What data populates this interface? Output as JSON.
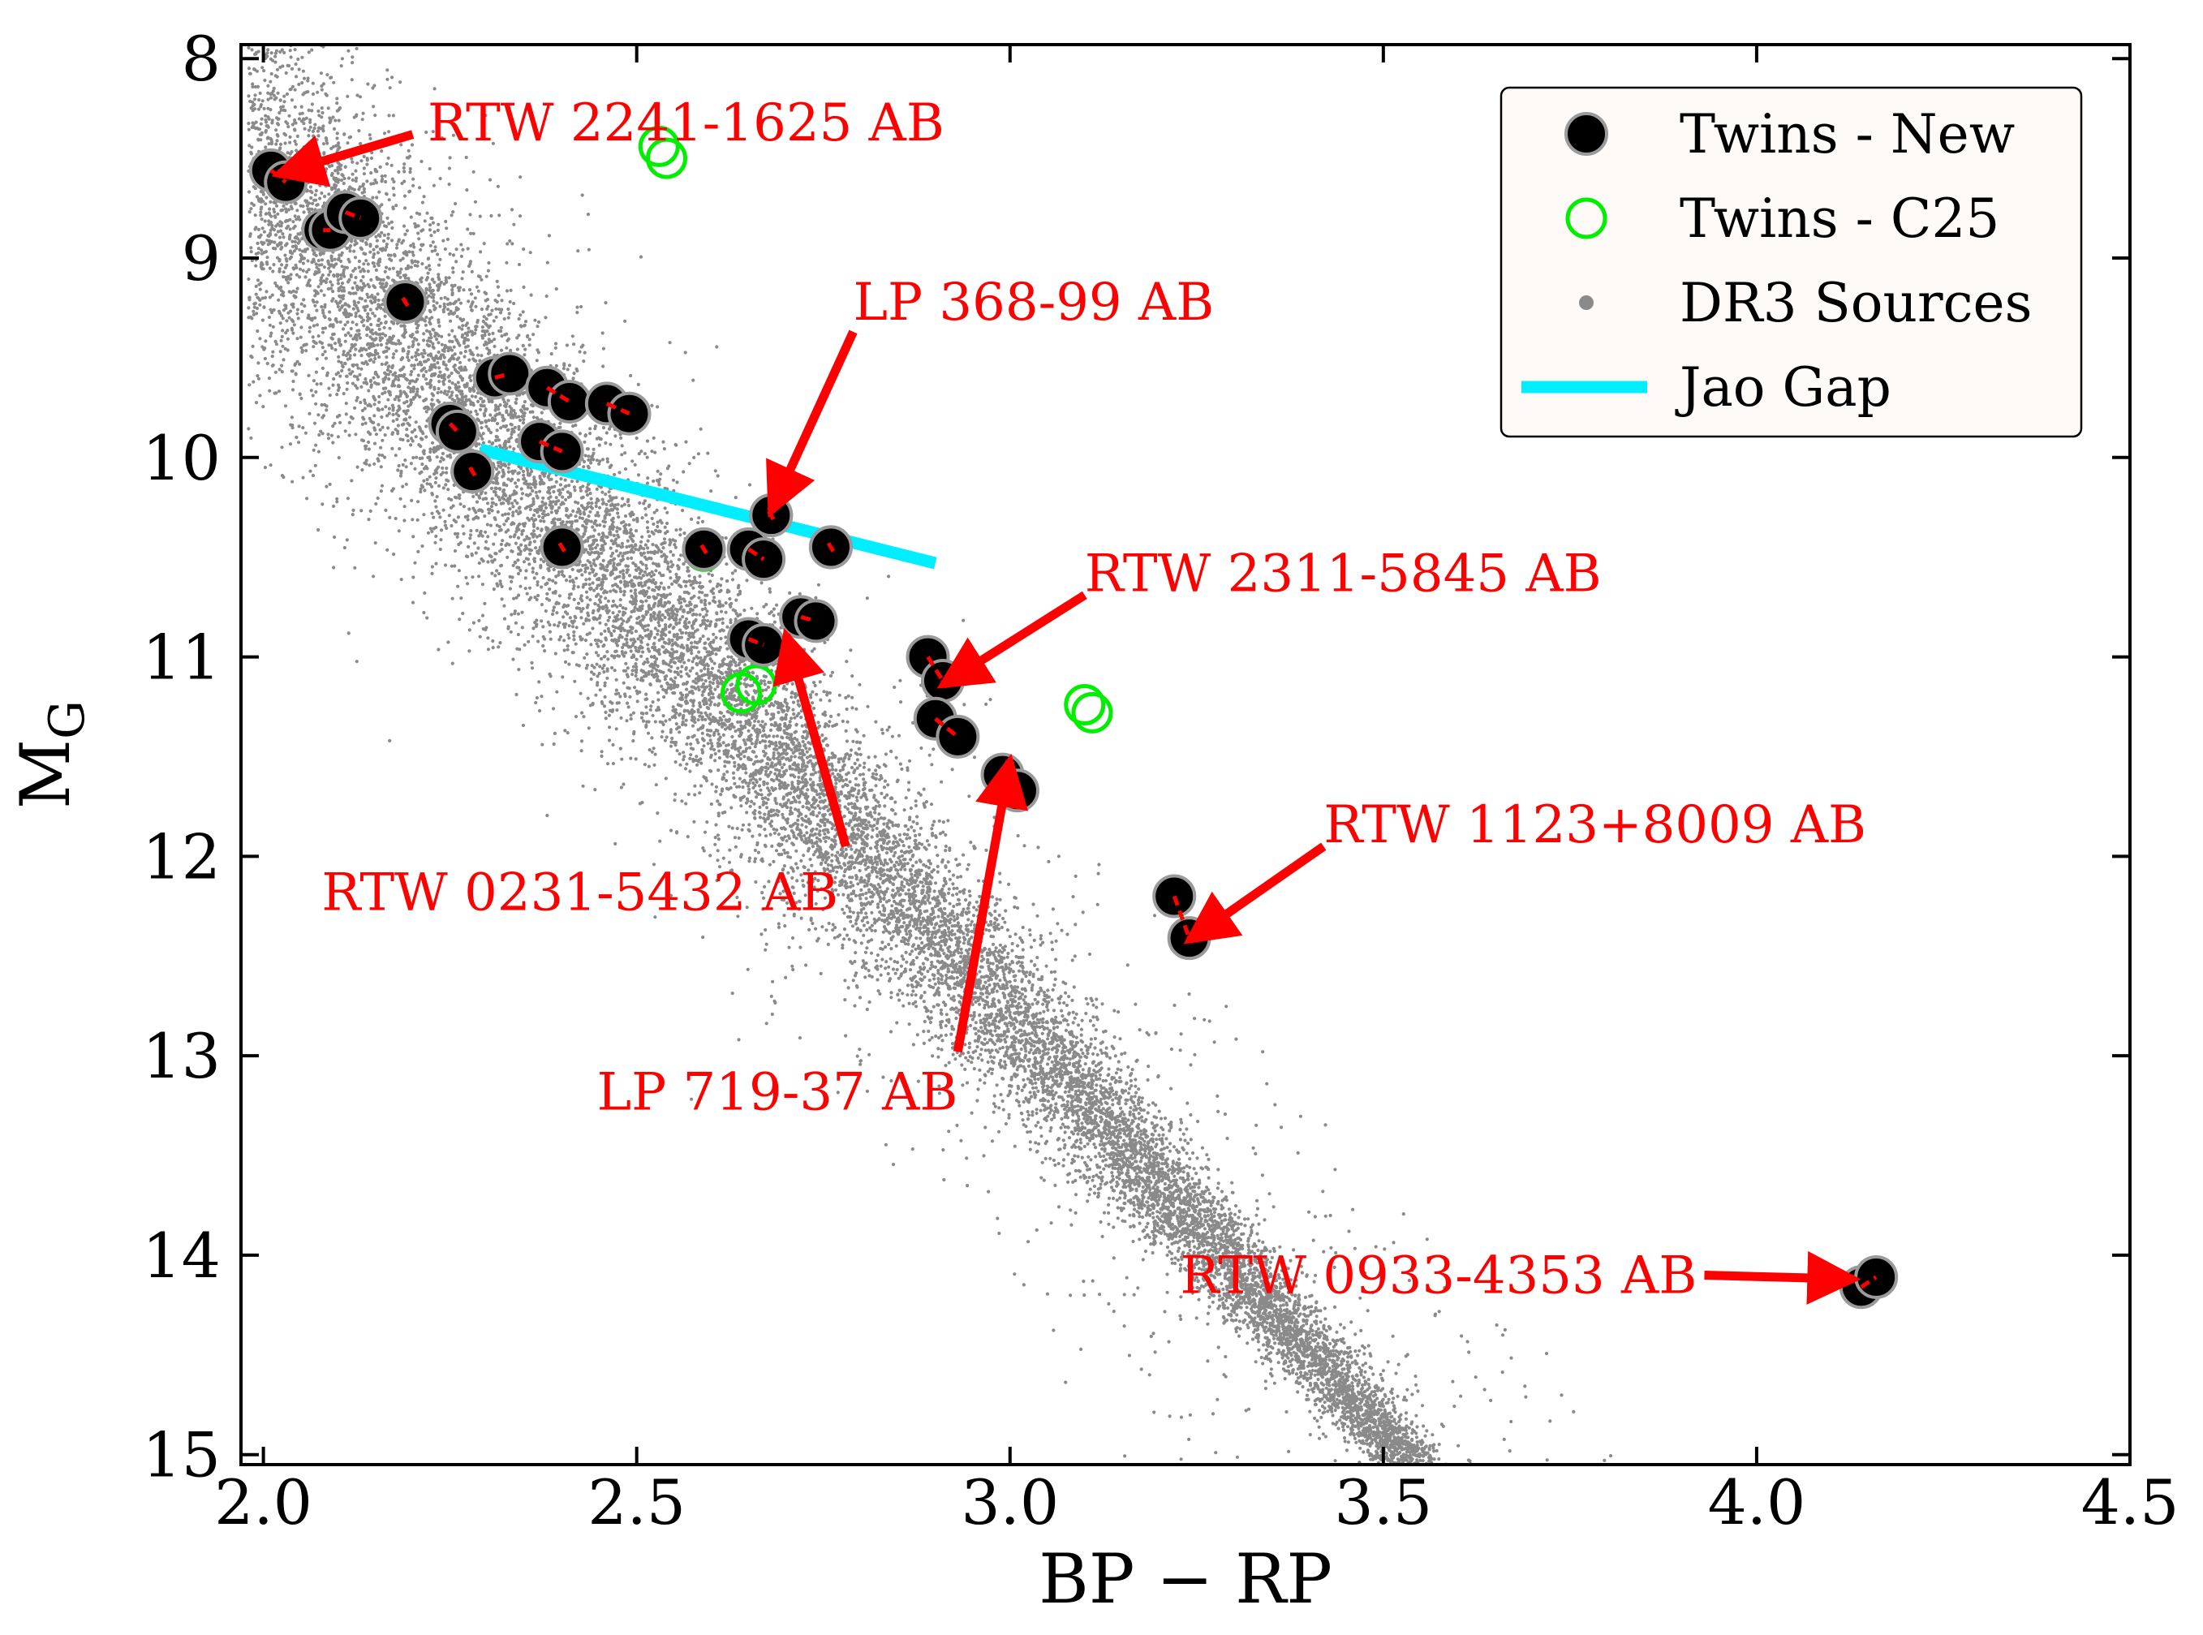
{
  "chart_data": {
    "type": "scatter",
    "title": "",
    "xlabel": "BP − RP",
    "ylabel_main": "M",
    "ylabel_sub": "G",
    "xlim": [
      1.97,
      4.5
    ],
    "ylim": [
      15.05,
      7.93
    ],
    "y_inverted": true,
    "x_ticks": [
      2.0,
      2.5,
      3.0,
      3.5,
      4.0,
      4.5
    ],
    "x_tick_labels": [
      "2.0",
      "2.5",
      "3.0",
      "3.5",
      "4.0",
      "4.5"
    ],
    "y_ticks": [
      8,
      9,
      10,
      11,
      12,
      13,
      14,
      15
    ],
    "y_tick_labels": [
      "8",
      "9",
      "10",
      "11",
      "12",
      "13",
      "14",
      "15"
    ],
    "grid": false,
    "legend_position": "top-right",
    "colors": {
      "new": "#000000",
      "new_edge": "#9a9a9a",
      "pair_link": "#ff0000",
      "c25": "#00ee00",
      "background": "#8a8a8a",
      "jao": "#00eeff",
      "annotation": "#ff0000"
    },
    "series": [
      {
        "name": "Twins - New",
        "marker": "filled-circle",
        "pairs": [
          [
            [
              2.01,
              8.56
            ],
            [
              2.03,
              8.62
            ]
          ],
          [
            [
              2.08,
              8.86
            ],
            [
              2.09,
              8.86
            ]
          ],
          [
            [
              2.11,
              8.77
            ],
            [
              2.13,
              8.8
            ]
          ],
          [
            [
              2.19,
              9.22
            ],
            [
              2.19,
              9.22
            ]
          ],
          [
            [
              2.25,
              9.83
            ],
            [
              2.26,
              9.87
            ]
          ],
          [
            [
              2.28,
              10.07
            ],
            [
              2.28,
              10.07
            ]
          ],
          [
            [
              2.31,
              9.6
            ],
            [
              2.33,
              9.58
            ]
          ],
          [
            [
              2.38,
              9.65
            ],
            [
              2.41,
              9.72
            ]
          ],
          [
            [
              2.37,
              9.92
            ],
            [
              2.4,
              9.97
            ]
          ],
          [
            [
              2.46,
              9.73
            ],
            [
              2.49,
              9.78
            ]
          ],
          [
            [
              2.4,
              10.45
            ],
            [
              2.4,
              10.45
            ]
          ],
          [
            [
              2.59,
              10.46
            ],
            [
              2.59,
              10.46
            ]
          ],
          [
            [
              2.65,
              10.46
            ],
            [
              2.67,
              10.51
            ]
          ],
          [
            [
              2.68,
              10.29
            ],
            [
              2.68,
              10.29
            ]
          ],
          [
            [
              2.76,
              10.45
            ],
            [
              2.76,
              10.45
            ]
          ],
          [
            [
              2.65,
              10.91
            ],
            [
              2.67,
              10.94
            ]
          ],
          [
            [
              2.72,
              10.8
            ],
            [
              2.74,
              10.82
            ]
          ],
          [
            [
              2.89,
              11.0
            ],
            [
              2.91,
              11.12
            ]
          ],
          [
            [
              2.9,
              11.31
            ],
            [
              2.93,
              11.4
            ]
          ],
          [
            [
              2.99,
              11.59
            ],
            [
              3.01,
              11.67
            ]
          ],
          [
            [
              3.22,
              12.2
            ],
            [
              3.24,
              12.41
            ]
          ],
          [
            [
              4.14,
              14.16
            ],
            [
              4.16,
              14.11
            ]
          ]
        ]
      },
      {
        "name": "Twins - C25",
        "marker": "open-circle",
        "points": [
          [
            2.53,
            8.44
          ],
          [
            2.54,
            8.5
          ],
          [
            2.59,
            10.47
          ],
          [
            2.65,
            10.46
          ],
          [
            2.64,
            11.18
          ],
          [
            2.66,
            11.14
          ],
          [
            3.1,
            11.24
          ],
          [
            3.11,
            11.28
          ]
        ]
      },
      {
        "name": "DR3 Sources",
        "marker": "small-dot",
        "n_points": 26000,
        "distribution": "main-sequence band; M_G ≈ 4.2·(BP−RP) + 0.2; scatter widening toward the blue end"
      }
    ],
    "jao_gap": {
      "name": "Jao Gap",
      "x": [
        2.29,
        2.9
      ],
      "y": [
        9.96,
        10.53
      ]
    },
    "annotations": [
      {
        "text": "RTW 2241-1625 AB",
        "target": [
          2.02,
          8.58
        ],
        "from": [
          2.2,
          8.38
        ],
        "text_pos": [
          2.22,
          8.32
        ]
      },
      {
        "text": "LP 368-99 AB",
        "target": [
          2.68,
          10.27
        ],
        "from": [
          2.79,
          9.37
        ],
        "text_pos": [
          2.79,
          9.22
        ]
      },
      {
        "text": "RTW 2311-5845 AB",
        "target": [
          2.91,
          11.14
        ],
        "from": [
          3.1,
          10.69
        ],
        "text_pos": [
          3.1,
          10.58
        ]
      },
      {
        "text": "RTW 0231-5432 AB",
        "target": [
          2.7,
          10.89
        ],
        "from": [
          2.78,
          11.95
        ],
        "text_pos": [
          2.77,
          12.18
        ]
      },
      {
        "text": "LP 719-37 AB",
        "target": [
          3.0,
          11.52
        ],
        "from": [
          2.93,
          12.98
        ],
        "text_pos": [
          2.93,
          13.18
        ]
      },
      {
        "text": "RTW 1123+8009 AB",
        "target": [
          3.24,
          12.42
        ],
        "from": [
          3.42,
          11.95
        ],
        "text_pos": [
          3.42,
          11.84
        ]
      },
      {
        "text": "RTW 0933-4353 AB",
        "target": [
          4.13,
          14.12
        ],
        "from": [
          3.93,
          14.1
        ],
        "text_pos": [
          3.92,
          14.1
        ]
      }
    ],
    "legend": {
      "entries": [
        "Twins - New",
        "Twins - C25",
        "DR3 Sources",
        "Jao Gap"
      ],
      "markers": [
        "filled-circle",
        "open-circle",
        "small-dot",
        "line"
      ]
    }
  }
}
